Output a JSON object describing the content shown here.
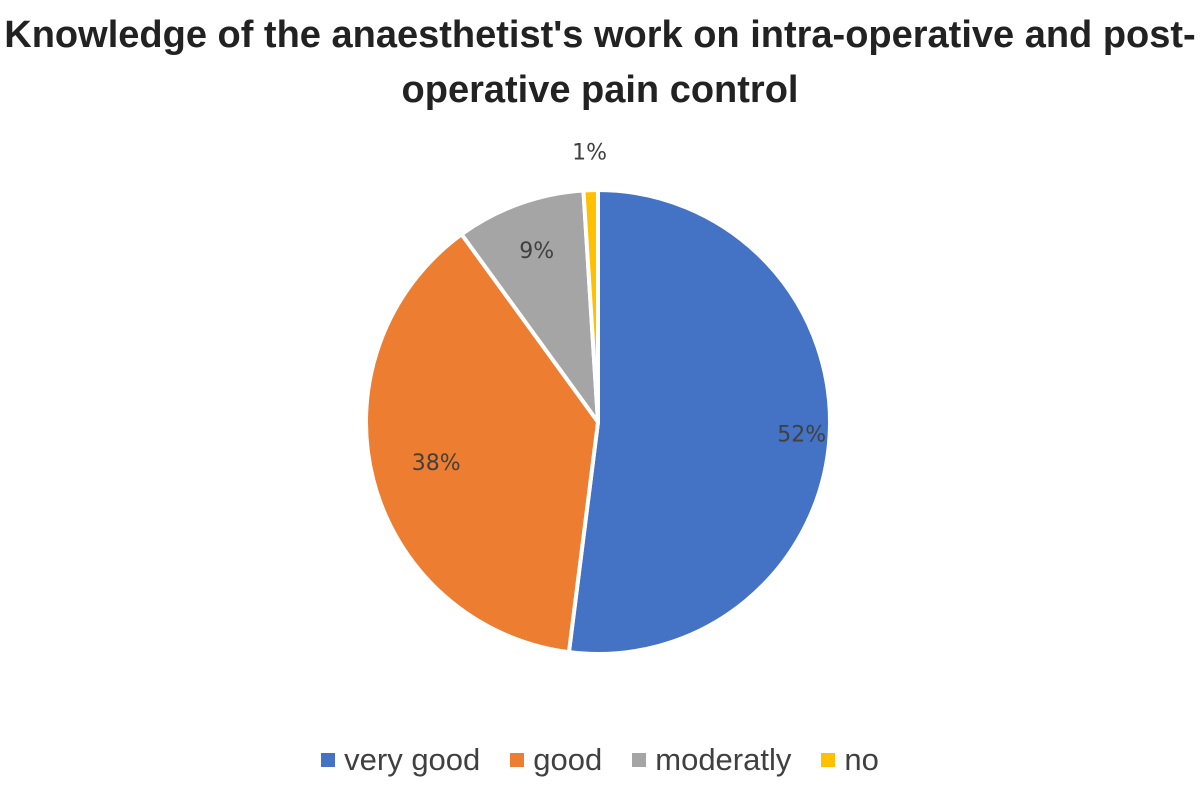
{
  "chart_data": {
    "type": "pie",
    "title": "Knowledge of the anaesthetist's work on intra-operative and post-operative pain control",
    "categories": [
      "very good",
      "good",
      "moderatly",
      "no"
    ],
    "values": [
      52,
      38,
      9,
      1
    ],
    "labels": [
      "52%",
      "38%",
      "9%",
      "1%"
    ],
    "colors": [
      "#4472C4",
      "#ED7D31",
      "#A5A5A5",
      "#FFC000"
    ],
    "legend_position": "bottom"
  }
}
